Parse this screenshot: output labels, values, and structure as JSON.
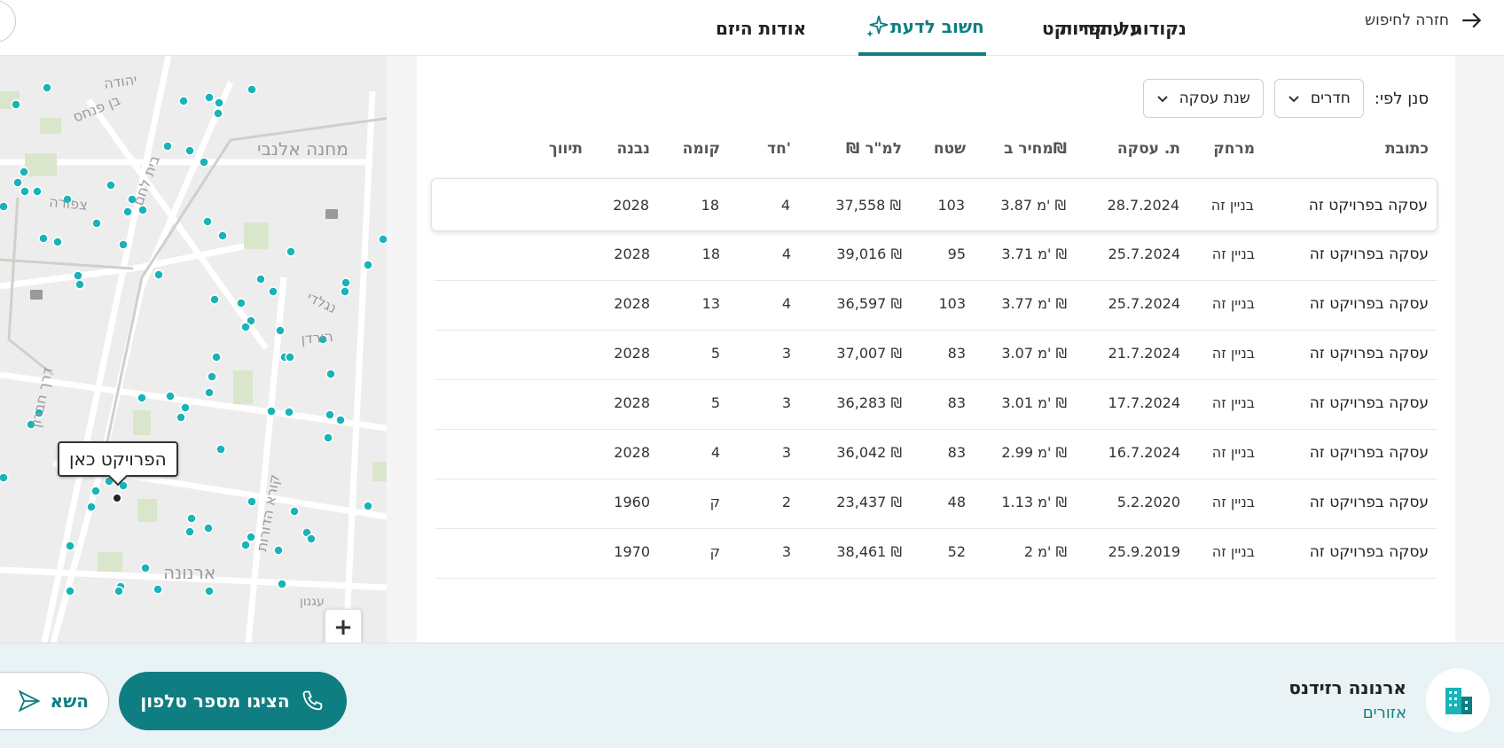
{
  "nav": {
    "back_label": "חזרה לחיפוש",
    "tabs": [
      {
        "label": "נקודות עיקריות",
        "active": false
      },
      {
        "label": "על הפרויקט",
        "active": false
      },
      {
        "label": "חשוב לדעת",
        "active": true
      },
      {
        "label": "אודות היזם",
        "active": false
      }
    ]
  },
  "map": {
    "marker_label": "הפרויקט כאן",
    "street_labels": [
      "יהודה",
      "בן פנחס",
      "מחנה אלנבי",
      "נגלדי",
      "הירדן",
      "קורא הדורות",
      "ארנונה",
      "בית לחם",
      "צפורה",
      "דרך חברון",
      "עגנון"
    ],
    "zoom_in": "+",
    "zoom_out": "−"
  },
  "filters": {
    "label": "סנן לפי:",
    "rooms": "חדרים",
    "year": "שנת עסקה"
  },
  "table": {
    "headers": {
      "address": "כתובת",
      "distance": "מרחק",
      "date": "ת. עסקה",
      "price": "מחיר ב₪",
      "area": "שטח",
      "ppm": "₪ למ\"ר",
      "rooms": "חד'",
      "floor": "קומה",
      "built": "נבנה",
      "broker": "תיווך"
    },
    "rows": [
      {
        "address": "עסקה בפרויקט זה",
        "distance": "בניין זה",
        "date": "28.7.2024",
        "price": "3.87 מ' ₪",
        "area": "103",
        "ppm": "37,558 ₪",
        "rooms": "4",
        "floor": "18",
        "built": "2028"
      },
      {
        "address": "עסקה בפרויקט זה",
        "distance": "בניין זה",
        "date": "25.7.2024",
        "price": "3.71 מ' ₪",
        "area": "95",
        "ppm": "39,016 ₪",
        "rooms": "4",
        "floor": "18",
        "built": "2028"
      },
      {
        "address": "עסקה בפרויקט זה",
        "distance": "בניין זה",
        "date": "25.7.2024",
        "price": "3.77 מ' ₪",
        "area": "103",
        "ppm": "36,597 ₪",
        "rooms": "4",
        "floor": "13",
        "built": "2028"
      },
      {
        "address": "עסקה בפרויקט זה",
        "distance": "בניין זה",
        "date": "21.7.2024",
        "price": "3.07 מ' ₪",
        "area": "83",
        "ppm": "37,007 ₪",
        "rooms": "3",
        "floor": "5",
        "built": "2028"
      },
      {
        "address": "עסקה בפרויקט זה",
        "distance": "בניין זה",
        "date": "17.7.2024",
        "price": "3.01 מ' ₪",
        "area": "83",
        "ppm": "36,283 ₪",
        "rooms": "3",
        "floor": "5",
        "built": "2028"
      },
      {
        "address": "עסקה בפרויקט זה",
        "distance": "בניין זה",
        "date": "16.7.2024",
        "price": "2.99 מ' ₪",
        "area": "83",
        "ppm": "36,042 ₪",
        "rooms": "3",
        "floor": "4",
        "built": "2028"
      },
      {
        "address": "עסקה בפרויקט זה",
        "distance": "בניין זה",
        "date": "5.2.2020",
        "price": "1.13 מ' ₪",
        "area": "48",
        "ppm": "23,437 ₪",
        "rooms": "2",
        "floor": "ק",
        "built": "1960"
      },
      {
        "address": "עסקה בפרויקט זה",
        "distance": "בניין זה",
        "date": "25.9.2019",
        "price": "2 מ' ₪",
        "area": "52",
        "ppm": "38,461 ₪",
        "rooms": "3",
        "floor": "ק",
        "built": "1970"
      }
    ]
  },
  "footer": {
    "project_name": "ארנונה רזידנס",
    "project_area": "אזורים",
    "phone_button": "הציגו מספר טלפון",
    "share_button": "השא"
  },
  "colors": {
    "accent": "#0f7e82",
    "dot": "#19b3b8"
  }
}
